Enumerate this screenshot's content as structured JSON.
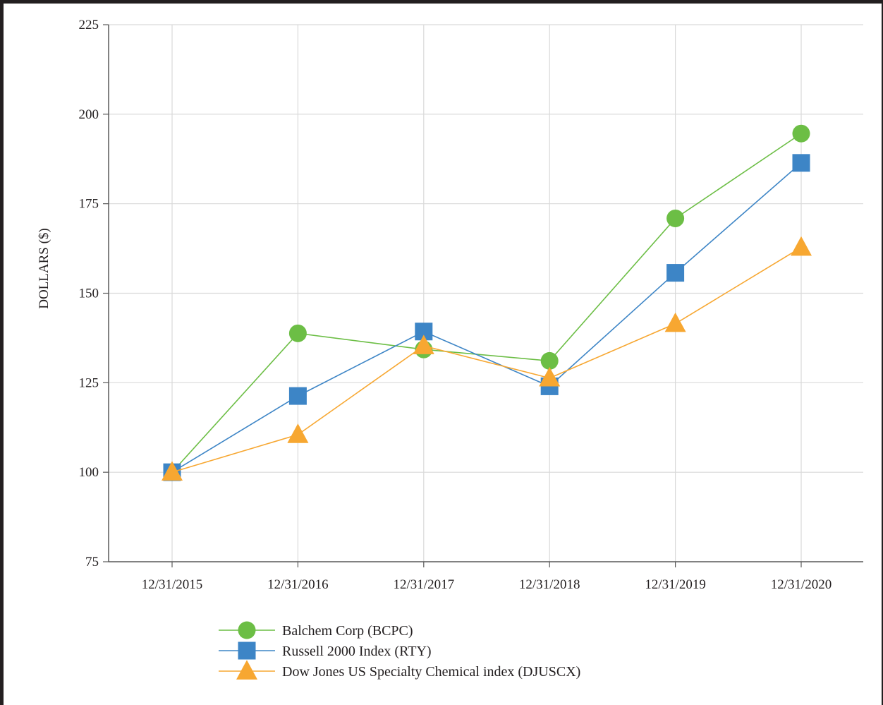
{
  "chart_data": {
    "type": "line",
    "title": "",
    "xlabel": "",
    "ylabel": "DOLLARS ($)",
    "categories": [
      "12/31/2015",
      "12/31/2016",
      "12/31/2017",
      "12/31/2018",
      "12/31/2019",
      "12/31/2020"
    ],
    "ylim": [
      75,
      225
    ],
    "yticks": [
      75,
      100,
      125,
      150,
      175,
      200,
      225
    ],
    "grid": true,
    "legend_position": "bottom",
    "series": [
      {
        "name": "Balchem Corp (BCPC)",
        "marker": "circle",
        "color": "#6cbe45",
        "values": [
          100,
          138.8,
          134.3,
          131.1,
          170.9,
          194.6
        ]
      },
      {
        "name": "Russell 2000 Index (RTY)",
        "marker": "square",
        "color": "#3d85c6",
        "values": [
          100,
          121.3,
          139.3,
          124.0,
          155.7,
          186.4
        ]
      },
      {
        "name": "Dow Jones US Specialty Chemical index (DJUSCX)",
        "marker": "triangle",
        "color": "#f7a731",
        "values": [
          100,
          110.5,
          135.3,
          126.3,
          141.5,
          162.8
        ]
      }
    ]
  }
}
